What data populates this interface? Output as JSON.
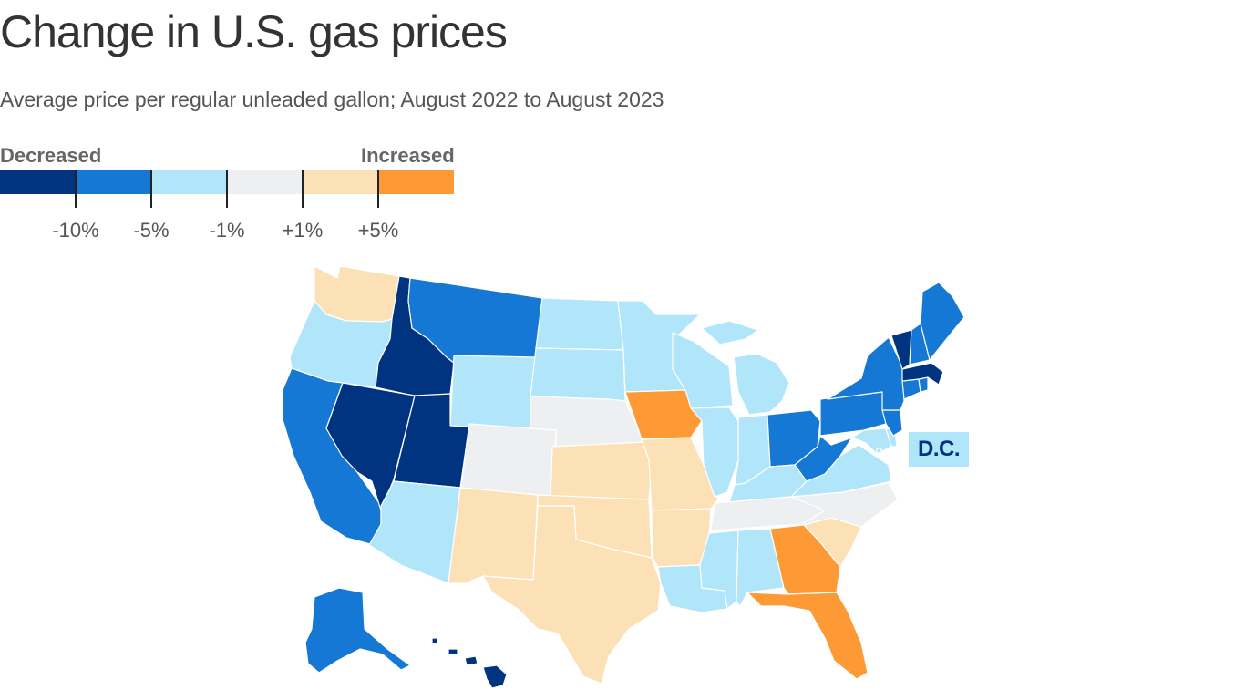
{
  "title": "Change in U.S. gas prices",
  "subtitle": "Average price per regular unleaded gallon; August 2022 to August 2023",
  "legend": {
    "decreased_label": "Decreased",
    "increased_label": "Increased",
    "bins": [
      {
        "id": "dec10",
        "color": "#003380"
      },
      {
        "id": "dec5",
        "color": "#1478d4"
      },
      {
        "id": "dec1",
        "color": "#b0e5fa"
      },
      {
        "id": "flat",
        "color": "#eeeff0"
      },
      {
        "id": "inc1",
        "color": "#fde1b6"
      },
      {
        "id": "inc5",
        "color": "#fd9a35"
      }
    ],
    "ticks": [
      "-10%",
      "-5%",
      "-1%",
      "+1%",
      "+5%"
    ]
  },
  "dc": {
    "label": "D.C.",
    "bin": "dec1",
    "text_color": "#003380"
  },
  "chart_data": {
    "type": "choropleth",
    "title": "Change in U.S. gas prices",
    "subtitle": "Average price per regular unleaded gallon; August 2022 to August 2023",
    "bins": [
      {
        "id": "dec10",
        "range": "below -10%"
      },
      {
        "id": "dec5",
        "range": "-10% to -5%"
      },
      {
        "id": "dec1",
        "range": "-5% to -1%"
      },
      {
        "id": "flat",
        "range": "-1% to +1%"
      },
      {
        "id": "inc1",
        "range": "+1% to +5%"
      },
      {
        "id": "inc5",
        "range": "above +5%"
      }
    ],
    "states": {
      "WA": "inc1",
      "OR": "dec1",
      "CA": "dec5",
      "ID": "dec10",
      "NV": "dec10",
      "UT": "dec10",
      "AZ": "dec1",
      "MT": "dec5",
      "WY": "dec1",
      "CO": "flat",
      "NM": "inc1",
      "ND": "dec1",
      "SD": "dec1",
      "NE": "flat",
      "KS": "inc1",
      "OK": "inc1",
      "TX": "inc1",
      "MN": "dec1",
      "IA": "inc5",
      "MO": "inc1",
      "AR": "inc1",
      "LA": "dec1",
      "WI": "dec1",
      "IL": "dec1",
      "MI": "dec1",
      "IN": "dec1",
      "OH": "dec5",
      "KY": "dec1",
      "TN": "flat",
      "MS": "dec1",
      "AL": "dec1",
      "GA": "inc5",
      "FL": "inc5",
      "SC": "inc1",
      "NC": "flat",
      "VA": "dec1",
      "WV": "dec5",
      "MD": "dec1",
      "DE": "dec1",
      "NJ": "dec5",
      "PA": "dec5",
      "NY": "dec5",
      "CT": "dec5",
      "RI": "dec5",
      "MA": "dec10",
      "VT": "dec10",
      "NH": "dec5",
      "ME": "dec5",
      "AK": "dec5",
      "HI": "dec10",
      "DC": "dec1"
    }
  }
}
